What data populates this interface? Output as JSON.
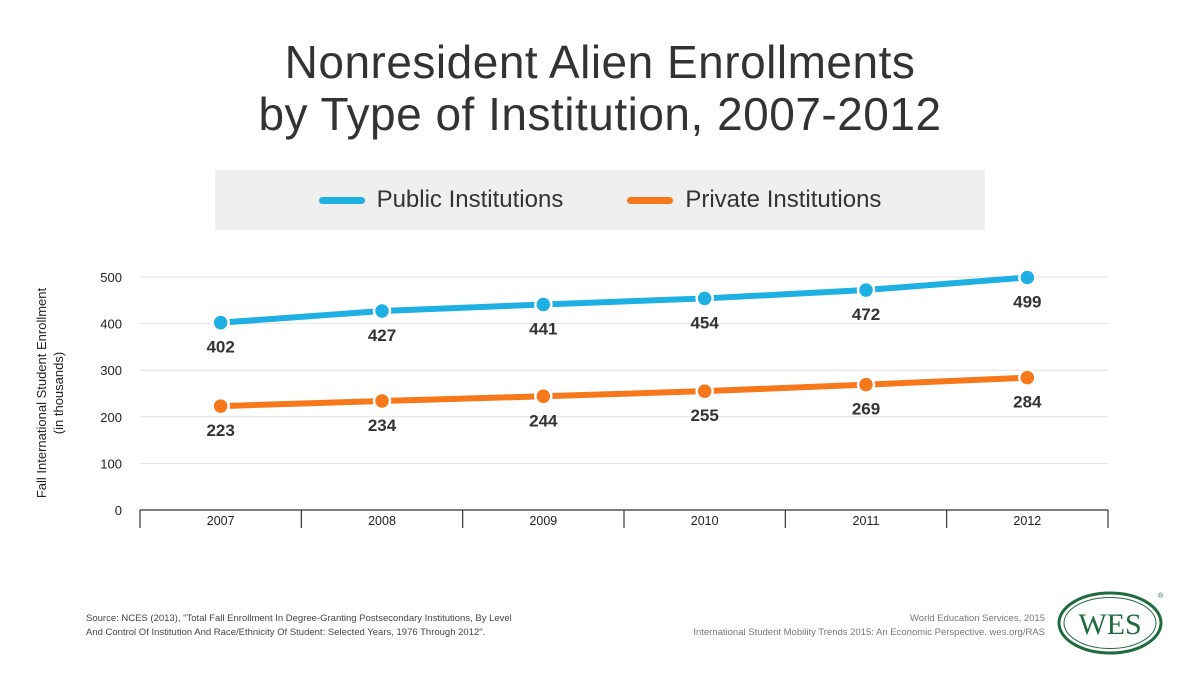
{
  "header": {
    "title_line1": "Nonresident Alien Enrollments",
    "title_line2": "by Type of Institution, 2007-2012"
  },
  "legend": {
    "public_label": "Public Institutions",
    "private_label": "Private Institutions"
  },
  "axis": {
    "ylabel_line1": "Fall International Student Enrollment",
    "ylabel_line2": "(in thousands)"
  },
  "colors": {
    "public": "#1fb0e3",
    "private": "#f7781a",
    "grid": "#e2e2e2",
    "text": "#333333"
  },
  "chart_data": {
    "type": "line",
    "categories": [
      "2007",
      "2008",
      "2009",
      "2010",
      "2011",
      "2012"
    ],
    "series": [
      {
        "name": "Public Institutions",
        "values": [
          402,
          427,
          441,
          454,
          472,
          499
        ]
      },
      {
        "name": "Private Institutions",
        "values": [
          223,
          234,
          244,
          255,
          269,
          284
        ]
      }
    ],
    "ylim": [
      0,
      500
    ],
    "yticks": [
      0,
      100,
      200,
      300,
      400,
      500
    ],
    "ylabel": "Fall International Student Enrollment (in thousands)",
    "xlabel": "",
    "grid": true,
    "legend_position": "top"
  },
  "footer": {
    "source_line1": "Source: NCES (2013), \"Total Fall Enrollment In Degree-Granting Postsecondary Institutions, By Level",
    "source_line2": "And Control Of Institution And Race/Ethnicity Of Student: Selected Years, 1976 Through 2012\".",
    "credit_line1": "World Education Services, 2015",
    "credit_line2": "International Student Mobility Trends 2015: An Economic Perspective. wes.org/RAS",
    "logo_text": "WES"
  }
}
